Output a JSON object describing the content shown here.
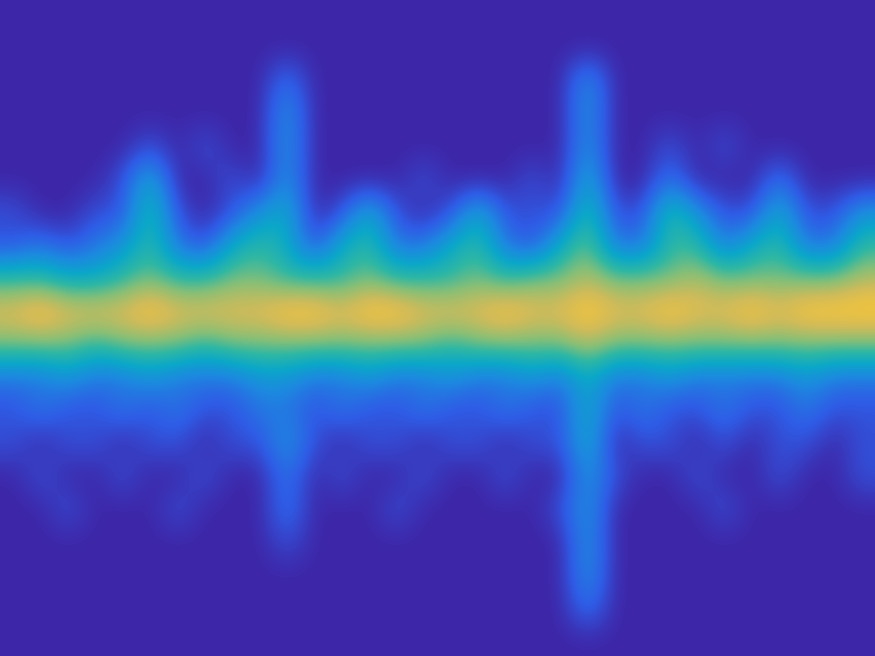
{
  "chart_data": {
    "type": "heatmap",
    "tick_labels": false,
    "color_range": [
      0,
      10
    ],
    "cells": [
      [
        0,
        0,
        0,
        0,
        0,
        0,
        0,
        0,
        0,
        0,
        0,
        0,
        0,
        0,
        0,
        0,
        0,
        0,
        0,
        0,
        0,
        0,
        0,
        0,
        0,
        0,
        0,
        0,
        0,
        0,
        0,
        0
      ],
      [
        0,
        0,
        0,
        0,
        0,
        0,
        0,
        0,
        0,
        0,
        0,
        0,
        0,
        0,
        0,
        0,
        0,
        0,
        0,
        0,
        0,
        0,
        0,
        0,
        0,
        0,
        0,
        0,
        0,
        0,
        0,
        0
      ],
      [
        0,
        0,
        0,
        0,
        0,
        0,
        0,
        0,
        0,
        0,
        2,
        0,
        0,
        0,
        0,
        0,
        0,
        0,
        0,
        0,
        0,
        3,
        0,
        0,
        0,
        0,
        0,
        0,
        0,
        0,
        0,
        0
      ],
      [
        0,
        0,
        0,
        0,
        0,
        0,
        0,
        0,
        0,
        0,
        3,
        0,
        0,
        0,
        0,
        0,
        0,
        0,
        0,
        0,
        0,
        3,
        0,
        0,
        0,
        0,
        0,
        0,
        0,
        0,
        0,
        0
      ],
      [
        0,
        0,
        0,
        0,
        0,
        1,
        0,
        1,
        0,
        0,
        3,
        0,
        0,
        0,
        0,
        0,
        0,
        0,
        0,
        0,
        0,
        3,
        0,
        0,
        1,
        0,
        1,
        0,
        0,
        0,
        0,
        0
      ],
      [
        0,
        0,
        0,
        0,
        1,
        4,
        0,
        0,
        1,
        0,
        3,
        0,
        0,
        0,
        0,
        1,
        0,
        0,
        0,
        1,
        0,
        4,
        0,
        0,
        2,
        0,
        0,
        0,
        2,
        0,
        0,
        0
      ],
      [
        1,
        0,
        0,
        1,
        1,
        5,
        1,
        0,
        1,
        3,
        4,
        0,
        1,
        4,
        1,
        0,
        1,
        4,
        1,
        1,
        1,
        5,
        1,
        1,
        5,
        3,
        1,
        1,
        4,
        1,
        1,
        3
      ],
      [
        1,
        2,
        1,
        2,
        3,
        5,
        2,
        1,
        4,
        5,
        4,
        1,
        4,
        5,
        2,
        2,
        4,
        5,
        2,
        1,
        4,
        6,
        2,
        2,
        5,
        5,
        2,
        4,
        5,
        2,
        2,
        5
      ],
      [
        5,
        5,
        4,
        4,
        5,
        6,
        5,
        5,
        6,
        6,
        5,
        5,
        5,
        6,
        5,
        5,
        5,
        6,
        5,
        6,
        6,
        7,
        6,
        6,
        6,
        7,
        6,
        6,
        6,
        6,
        6,
        7
      ],
      [
        8,
        9,
        8,
        8,
        8,
        9,
        8,
        8,
        8,
        8,
        9,
        9,
        8,
        9,
        9,
        8,
        8,
        8,
        9,
        8,
        8,
        9,
        8,
        8,
        9,
        8,
        8,
        9,
        8,
        9,
        9,
        9
      ],
      [
        6,
        6,
        6,
        5,
        6,
        6,
        6,
        5,
        6,
        6,
        6,
        6,
        6,
        6,
        6,
        6,
        5,
        6,
        6,
        6,
        6,
        7,
        6,
        6,
        6,
        6,
        6,
        6,
        6,
        6,
        6,
        6
      ],
      [
        2,
        2,
        3,
        2,
        2,
        3,
        2,
        2,
        2,
        3,
        3,
        2,
        2,
        3,
        2,
        2,
        3,
        2,
        2,
        3,
        2,
        4,
        2,
        2,
        3,
        2,
        2,
        2,
        2,
        3,
        2,
        2
      ],
      [
        1,
        2,
        1,
        1,
        2,
        1,
        2,
        1,
        1,
        2,
        2,
        1,
        2,
        1,
        1,
        2,
        1,
        1,
        2,
        1,
        1,
        4,
        1,
        2,
        1,
        1,
        2,
        1,
        1,
        2,
        1,
        1
      ],
      [
        1,
        0,
        1,
        1,
        0,
        1,
        1,
        0,
        1,
        1,
        3,
        1,
        0,
        1,
        1,
        0,
        1,
        1,
        0,
        1,
        1,
        4,
        0,
        1,
        1,
        0,
        1,
        0,
        1,
        1,
        0,
        1
      ],
      [
        0,
        1,
        0,
        0,
        1,
        0,
        0,
        1,
        0,
        0,
        2,
        0,
        1,
        0,
        0,
        1,
        0,
        0,
        1,
        0,
        0,
        3,
        1,
        0,
        0,
        1,
        0,
        0,
        1,
        0,
        0,
        1
      ],
      [
        0,
        0,
        1,
        0,
        0,
        0,
        1,
        0,
        0,
        0,
        2,
        0,
        0,
        0,
        1,
        0,
        0,
        0,
        0,
        0,
        1,
        3,
        0,
        0,
        0,
        0,
        1,
        0,
        0,
        0,
        0,
        0
      ],
      [
        0,
        0,
        0,
        0,
        0,
        0,
        0,
        0,
        0,
        0,
        1,
        0,
        0,
        0,
        0,
        0,
        0,
        0,
        0,
        0,
        0,
        3,
        0,
        0,
        0,
        0,
        0,
        0,
        0,
        0,
        0,
        0
      ],
      [
        0,
        0,
        0,
        0,
        0,
        0,
        0,
        0,
        0,
        0,
        0,
        0,
        0,
        0,
        0,
        0,
        0,
        0,
        0,
        0,
        0,
        3,
        0,
        0,
        0,
        0,
        0,
        0,
        0,
        0,
        0,
        0
      ],
      [
        0,
        0,
        0,
        0,
        0,
        0,
        0,
        0,
        0,
        0,
        0,
        0,
        0,
        0,
        0,
        0,
        0,
        0,
        0,
        0,
        0,
        2,
        0,
        0,
        0,
        0,
        0,
        0,
        0,
        0,
        0,
        0
      ],
      [
        0,
        0,
        0,
        0,
        0,
        0,
        0,
        0,
        0,
        0,
        0,
        0,
        0,
        0,
        0,
        0,
        0,
        0,
        0,
        0,
        0,
        0,
        0,
        0,
        0,
        0,
        0,
        0,
        0,
        0,
        0,
        0
      ]
    ]
  }
}
